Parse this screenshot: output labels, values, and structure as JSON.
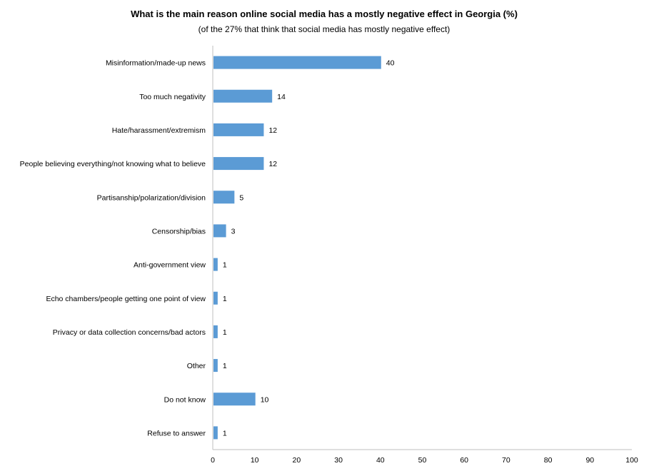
{
  "chart_data": {
    "type": "bar",
    "orientation": "horizontal",
    "title": "What is the main reason online social media has a mostly negative effect in Georgia (%)",
    "subtitle": "(of the 27% that think that social media has mostly negative effect)",
    "categories": [
      "Misinformation/made-up news",
      "Too much negativity",
      "Hate/harassment/extremism",
      "People believing everything/not knowing what to believe",
      "Partisanship/polarization/division",
      "Censorship/bias",
      "Anti-government view",
      "Echo chambers/people getting one point of view",
      "Privacy or data collection concerns/bad actors",
      "Other",
      "Do not know",
      "Refuse to answer"
    ],
    "values": [
      40,
      14,
      12,
      12,
      5,
      3,
      1,
      1,
      1,
      1,
      10,
      1
    ],
    "xlim": [
      0,
      100
    ],
    "xticks": [
      0,
      10,
      20,
      30,
      40,
      50,
      60,
      70,
      80,
      90,
      100
    ],
    "bar_color": "#5b9bd5",
    "grid": false,
    "legend": "none"
  }
}
